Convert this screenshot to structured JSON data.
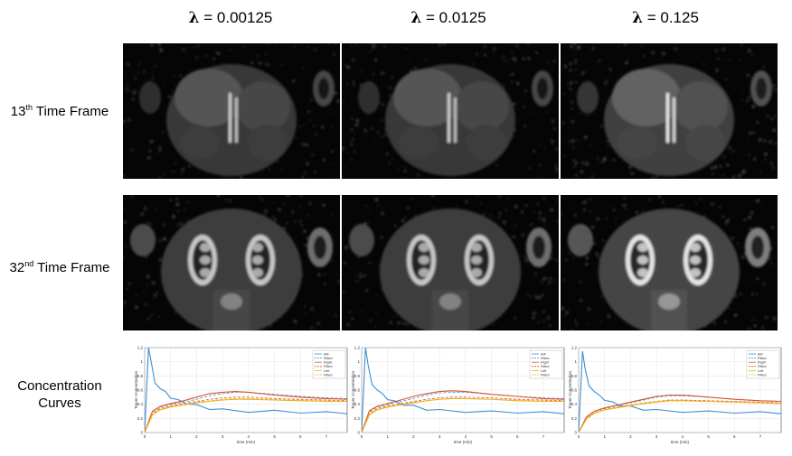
{
  "columns": [
    {
      "symbol": "λ",
      "value": "= 0.00125"
    },
    {
      "symbol": "λ",
      "value": "= 0.0125"
    },
    {
      "symbol": "λ",
      "value": "= 0.125"
    }
  ],
  "rows": [
    {
      "prefix": "13",
      "sup": "th",
      "suffix": " Time Frame"
    },
    {
      "prefix": "32",
      "sup": "nd",
      "suffix": " Time Frame"
    },
    {
      "line1": "Concentration",
      "line2": "Curves"
    }
  ],
  "plot_text": {
    "xlabel": "time (min)",
    "ylabel": "Tracer Concentration",
    "legend": [
      "AIF",
      "Fitted",
      "Right",
      "Fitted",
      "Left",
      "Fitted"
    ]
  },
  "colors": {
    "aif": "#3f8fd0",
    "right": "#d9542b",
    "left": "#edb120",
    "background": "#000000"
  },
  "chart_data": [
    {
      "type": "line",
      "title": "",
      "xlabel": "time (min)",
      "ylabel": "Tracer Concentration",
      "xlim": [
        0,
        7.8
      ],
      "ylim": [
        0,
        1.2
      ],
      "grid": true,
      "legend": "top-right",
      "xticks": [
        0,
        1,
        2,
        3,
        4,
        5,
        6,
        7
      ],
      "yticks": [
        0,
        0.2,
        0.4,
        0.6,
        0.8,
        1,
        1.2
      ],
      "series": [
        {
          "name": "AIF",
          "x": [
            0,
            0.15,
            0.25,
            0.4,
            0.6,
            0.8,
            1,
            1.3,
            1.6,
            2,
            2.5,
            3,
            4,
            5,
            6,
            7,
            7.8
          ],
          "y": [
            0,
            1.2,
            1.0,
            0.7,
            0.62,
            0.58,
            0.5,
            0.45,
            0.42,
            0.38,
            0.34,
            0.32,
            0.3,
            0.3,
            0.29,
            0.28,
            0.28
          ]
        },
        {
          "name": "Fitted",
          "x": [
            0,
            0.3,
            0.6,
            1,
            1.5,
            2,
            2.5,
            3,
            3.5,
            4,
            5,
            6,
            7,
            7.8
          ],
          "y": [
            0,
            0.3,
            0.36,
            0.4,
            0.43,
            0.47,
            0.52,
            0.55,
            0.57,
            0.57,
            0.54,
            0.51,
            0.49,
            0.48
          ]
        },
        {
          "name": "Right",
          "x": [
            0,
            0.3,
            0.6,
            1,
            1.5,
            2,
            2.5,
            3,
            3.5,
            4,
            5,
            6,
            7,
            7.8
          ],
          "y": [
            0,
            0.3,
            0.37,
            0.41,
            0.45,
            0.5,
            0.55,
            0.57,
            0.58,
            0.57,
            0.53,
            0.5,
            0.48,
            0.47
          ]
        },
        {
          "name": "Fitted",
          "x": [
            0,
            0.3,
            0.6,
            1,
            1.5,
            2,
            2.5,
            3,
            3.5,
            4,
            5,
            6,
            7,
            7.8
          ],
          "y": [
            0,
            0.28,
            0.34,
            0.38,
            0.41,
            0.44,
            0.47,
            0.49,
            0.5,
            0.5,
            0.48,
            0.47,
            0.46,
            0.45
          ]
        },
        {
          "name": "Left",
          "x": [
            0,
            0.3,
            0.6,
            1,
            1.5,
            2,
            2.5,
            3,
            3.5,
            4,
            5,
            6,
            7,
            7.8
          ],
          "y": [
            0,
            0.25,
            0.32,
            0.36,
            0.39,
            0.42,
            0.44,
            0.46,
            0.47,
            0.47,
            0.46,
            0.45,
            0.44,
            0.44
          ]
        },
        {
          "name": "Fitted",
          "x": [
            0,
            0.3,
            0.6,
            1,
            1.5,
            2,
            2.5,
            3,
            3.5,
            4,
            5,
            6,
            7,
            7.8
          ],
          "y": [
            0,
            0.27,
            0.33,
            0.37,
            0.4,
            0.43,
            0.45,
            0.47,
            0.48,
            0.48,
            0.47,
            0.46,
            0.45,
            0.44
          ]
        }
      ]
    },
    {
      "type": "line",
      "title": "",
      "xlabel": "time (min)",
      "ylabel": "Tracer Concentration",
      "xlim": [
        0,
        7.8
      ],
      "ylim": [
        0,
        1.2
      ],
      "grid": true,
      "legend": "top-right",
      "xticks": [
        0,
        1,
        2,
        3,
        4,
        5,
        6,
        7
      ],
      "yticks": [
        0,
        0.2,
        0.4,
        0.6,
        0.8,
        1,
        1.2
      ],
      "series": [
        {
          "name": "AIF",
          "x": [
            0,
            0.15,
            0.25,
            0.4,
            0.6,
            0.8,
            1,
            1.3,
            1.6,
            2,
            2.5,
            3,
            4,
            5,
            6,
            7,
            7.8
          ],
          "y": [
            0,
            1.2,
            0.95,
            0.68,
            0.6,
            0.55,
            0.48,
            0.43,
            0.4,
            0.37,
            0.33,
            0.31,
            0.3,
            0.29,
            0.29,
            0.28,
            0.28
          ]
        },
        {
          "name": "Fitted",
          "x": [
            0,
            0.3,
            0.6,
            1,
            1.5,
            2,
            2.5,
            3,
            3.5,
            4,
            5,
            6,
            7,
            7.8
          ],
          "y": [
            0,
            0.3,
            0.36,
            0.4,
            0.44,
            0.48,
            0.53,
            0.56,
            0.57,
            0.57,
            0.54,
            0.51,
            0.49,
            0.48
          ]
        },
        {
          "name": "Right",
          "x": [
            0,
            0.3,
            0.6,
            1,
            1.5,
            2,
            2.5,
            3,
            3.5,
            4,
            5,
            6,
            7,
            7.8
          ],
          "y": [
            0,
            0.31,
            0.37,
            0.41,
            0.46,
            0.51,
            0.55,
            0.58,
            0.59,
            0.58,
            0.54,
            0.51,
            0.48,
            0.47
          ]
        },
        {
          "name": "Fitted",
          "x": [
            0,
            0.3,
            0.6,
            1,
            1.5,
            2,
            2.5,
            3,
            3.5,
            4,
            5,
            6,
            7,
            7.8
          ],
          "y": [
            0,
            0.28,
            0.34,
            0.38,
            0.41,
            0.44,
            0.47,
            0.49,
            0.5,
            0.5,
            0.49,
            0.47,
            0.46,
            0.45
          ]
        },
        {
          "name": "Left",
          "x": [
            0,
            0.3,
            0.6,
            1,
            1.5,
            2,
            2.5,
            3,
            3.5,
            4,
            5,
            6,
            7,
            7.8
          ],
          "y": [
            0,
            0.25,
            0.32,
            0.36,
            0.39,
            0.42,
            0.45,
            0.47,
            0.48,
            0.48,
            0.47,
            0.45,
            0.44,
            0.44
          ]
        },
        {
          "name": "Fitted",
          "x": [
            0,
            0.3,
            0.6,
            1,
            1.5,
            2,
            2.5,
            3,
            3.5,
            4,
            5,
            6,
            7,
            7.8
          ],
          "y": [
            0,
            0.27,
            0.33,
            0.37,
            0.4,
            0.43,
            0.45,
            0.47,
            0.48,
            0.48,
            0.47,
            0.46,
            0.45,
            0.44
          ]
        }
      ]
    },
    {
      "type": "line",
      "title": "",
      "xlabel": "time (min)",
      "ylabel": "Tracer Concentration",
      "xlim": [
        0,
        7.8
      ],
      "ylim": [
        0,
        1.2
      ],
      "grid": true,
      "legend": "top-right",
      "xticks": [
        0,
        1,
        2,
        3,
        4,
        5,
        6,
        7
      ],
      "yticks": [
        0,
        0.2,
        0.4,
        0.6,
        0.8,
        1,
        1.2
      ],
      "series": [
        {
          "name": "AIF",
          "x": [
            0,
            0.15,
            0.25,
            0.4,
            0.6,
            0.8,
            1,
            1.3,
            1.6,
            2,
            2.5,
            3,
            4,
            5,
            6,
            7,
            7.8
          ],
          "y": [
            0,
            1.15,
            0.9,
            0.66,
            0.58,
            0.53,
            0.47,
            0.42,
            0.39,
            0.36,
            0.33,
            0.31,
            0.3,
            0.29,
            0.29,
            0.28,
            0.28
          ]
        },
        {
          "name": "Fitted",
          "x": [
            0,
            0.3,
            0.6,
            1,
            1.5,
            2,
            2.5,
            3,
            3.5,
            4,
            5,
            6,
            7,
            7.8
          ],
          "y": [
            0,
            0.22,
            0.3,
            0.34,
            0.38,
            0.42,
            0.46,
            0.5,
            0.52,
            0.52,
            0.5,
            0.47,
            0.45,
            0.44
          ]
        },
        {
          "name": "Right",
          "x": [
            0,
            0.3,
            0.6,
            1,
            1.5,
            2,
            2.5,
            3,
            3.5,
            4,
            5,
            6,
            7,
            7.8
          ],
          "y": [
            0,
            0.22,
            0.3,
            0.35,
            0.39,
            0.43,
            0.47,
            0.51,
            0.53,
            0.53,
            0.5,
            0.47,
            0.45,
            0.44
          ]
        },
        {
          "name": "Fitted",
          "x": [
            0,
            0.3,
            0.6,
            1,
            1.5,
            2,
            2.5,
            3,
            3.5,
            4,
            5,
            6,
            7,
            7.8
          ],
          "y": [
            0,
            0.2,
            0.28,
            0.33,
            0.36,
            0.39,
            0.42,
            0.44,
            0.46,
            0.46,
            0.45,
            0.44,
            0.43,
            0.42
          ]
        },
        {
          "name": "Left",
          "x": [
            0,
            0.3,
            0.6,
            1,
            1.5,
            2,
            2.5,
            3,
            3.5,
            4,
            5,
            6,
            7,
            7.8
          ],
          "y": [
            0,
            0.19,
            0.27,
            0.32,
            0.35,
            0.38,
            0.41,
            0.43,
            0.45,
            0.45,
            0.44,
            0.43,
            0.42,
            0.41
          ]
        },
        {
          "name": "Fitted",
          "x": [
            0,
            0.3,
            0.6,
            1,
            1.5,
            2,
            2.5,
            3,
            3.5,
            4,
            5,
            6,
            7,
            7.8
          ],
          "y": [
            0,
            0.2,
            0.28,
            0.33,
            0.36,
            0.39,
            0.42,
            0.44,
            0.45,
            0.45,
            0.44,
            0.43,
            0.42,
            0.41
          ]
        }
      ]
    }
  ]
}
